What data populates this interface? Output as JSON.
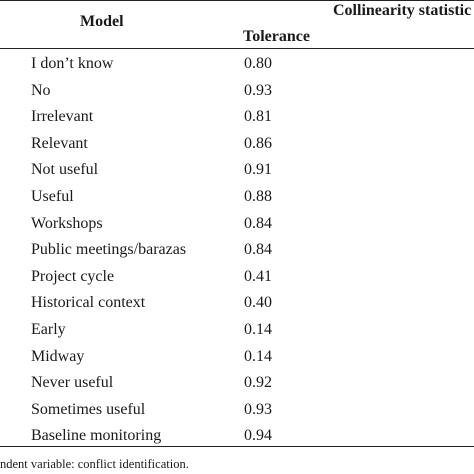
{
  "table": {
    "header": {
      "model": "Model",
      "collinearity": "Collinearity statistic",
      "tolerance": "Tolerance"
    },
    "rows": [
      {
        "label": "I don’t know",
        "tolerance": "0.80"
      },
      {
        "label": "No",
        "tolerance": "0.93"
      },
      {
        "label": "Irrelevant",
        "tolerance": "0.81"
      },
      {
        "label": "Relevant",
        "tolerance": "0.86"
      },
      {
        "label": "Not useful",
        "tolerance": "0.91"
      },
      {
        "label": "Useful",
        "tolerance": "0.88"
      },
      {
        "label": "Workshops",
        "tolerance": "0.84"
      },
      {
        "label": "Public meetings/barazas",
        "tolerance": "0.84"
      },
      {
        "label": "Project cycle",
        "tolerance": "0.41"
      },
      {
        "label": "Historical context",
        "tolerance": "0.40"
      },
      {
        "label": "Early",
        "tolerance": "0.14"
      },
      {
        "label": "Midway",
        "tolerance": "0.14"
      },
      {
        "label": "Never useful",
        "tolerance": "0.92"
      },
      {
        "label": "Sometimes useful",
        "tolerance": "0.93"
      },
      {
        "label": "Baseline monitoring",
        "tolerance": "0.94"
      }
    ],
    "footnote": "ndent variable: conflict identification."
  }
}
